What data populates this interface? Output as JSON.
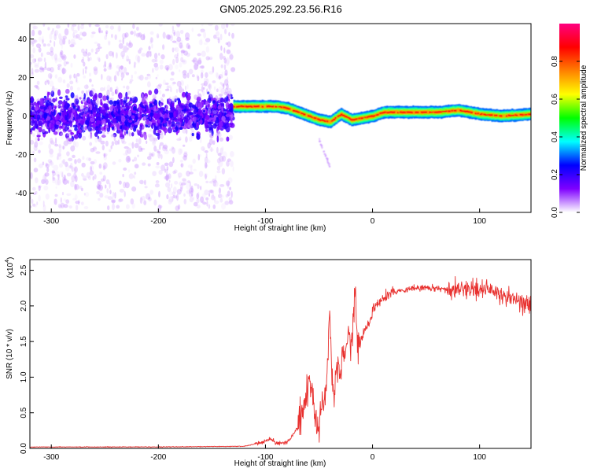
{
  "title": "GN05.2025.292.23.56.R16",
  "chart_data": [
    {
      "type": "heatmap",
      "title": "GN05.2025.292.23.56.R16",
      "xlabel": "Height of straight line (km)",
      "ylabel": "Frequency (Hz)",
      "xlim": [
        -320,
        148
      ],
      "ylim": [
        -50,
        48
      ],
      "xticks": [
        -300,
        -200,
        -100,
        0,
        100
      ],
      "xticklabels": [
        "-300",
        "-200",
        "-100",
        "0",
        "100"
      ],
      "yticks": [
        -40,
        -20,
        0,
        20,
        40
      ],
      "yticklabels": [
        "-40",
        "-20",
        "0",
        "20",
        "40"
      ],
      "colorbar": {
        "label": "Normalized spectral amplitude",
        "range": [
          0,
          1
        ],
        "ticks": [
          0.0,
          0.2,
          0.4,
          0.6,
          0.8
        ],
        "ticklabels": [
          "0.0",
          "0.2",
          "0.4",
          "0.6",
          "0.8"
        ],
        "colormap": [
          "#ffffff",
          "#7f00ff",
          "#0000ff",
          "#00ffff",
          "#00ff00",
          "#ffff00",
          "#ff8000",
          "#ff0000",
          "#ff0080"
        ]
      },
      "features": [
        {
          "name": "diffuse noise",
          "x_range": [
            -320,
            -130
          ],
          "center_freq_hz": 0,
          "spread_hz": 48
        },
        {
          "name": "dominant frequency track",
          "x": [
            -130,
            -100,
            -90,
            -80,
            -70,
            -60,
            -50,
            -40,
            -30,
            -20,
            -10,
            0,
            10,
            20,
            40,
            60,
            80,
            100,
            120,
            148
          ],
          "freq_hz": [
            5,
            5,
            5,
            4,
            2,
            0,
            -2,
            -3,
            1,
            -2,
            -1,
            0,
            2,
            2,
            2,
            2,
            3,
            1,
            0,
            1
          ]
        }
      ]
    },
    {
      "type": "line",
      "xlabel": "Height of straight line (km)",
      "ylabel": "SNR (10 * v/v)",
      "y_multiplier_label": "(x10",
      "y_multiplier_exponent": "4",
      "xlim": [
        -320,
        148
      ],
      "ylim": [
        0,
        2.65
      ],
      "xticks": [
        -300,
        -200,
        -100,
        0,
        100
      ],
      "xticklabels": [
        "-300",
        "-200",
        "-100",
        "0",
        "100"
      ],
      "yticks": [
        0.0,
        0.5,
        1.0,
        1.5,
        2.0,
        2.5
      ],
      "yticklabels": [
        "0.0",
        "0.5",
        "1.0",
        "1.5",
        "2.0",
        "2.5"
      ],
      "series": [
        {
          "name": "SNR",
          "color": "#e8312f",
          "x": [
            -320,
            -200,
            -120,
            -110,
            -100,
            -95,
            -90,
            -80,
            -75,
            -70,
            -65,
            -60,
            -58,
            -55,
            -52,
            -50,
            -47,
            -45,
            -43,
            -40,
            -38,
            -36,
            -34,
            -32,
            -30,
            -28,
            -26,
            -24,
            -22,
            -20,
            -18,
            -16,
            -15,
            -14,
            -12,
            -10,
            -8,
            -5,
            -2,
            0,
            5,
            10,
            20,
            30,
            40,
            50,
            60,
            70,
            80,
            90,
            100,
            110,
            120,
            130,
            140,
            148
          ],
          "values": [
            0.02,
            0.02,
            0.03,
            0.06,
            0.1,
            0.14,
            0.07,
            0.08,
            0.18,
            0.3,
            0.5,
            0.85,
            0.95,
            0.6,
            0.3,
            0.25,
            0.6,
            0.7,
            0.9,
            1.95,
            1.0,
            0.75,
            1.1,
            1.2,
            1.0,
            1.5,
            1.3,
            1.5,
            1.65,
            1.3,
            1.9,
            2.3,
            1.7,
            1.45,
            1.6,
            1.55,
            1.65,
            1.72,
            1.8,
            1.95,
            2.05,
            2.1,
            2.2,
            2.22,
            2.25,
            2.25,
            2.25,
            2.22,
            2.25,
            2.25,
            2.2,
            2.25,
            2.15,
            2.1,
            2.05,
            2.05
          ]
        }
      ]
    }
  ]
}
